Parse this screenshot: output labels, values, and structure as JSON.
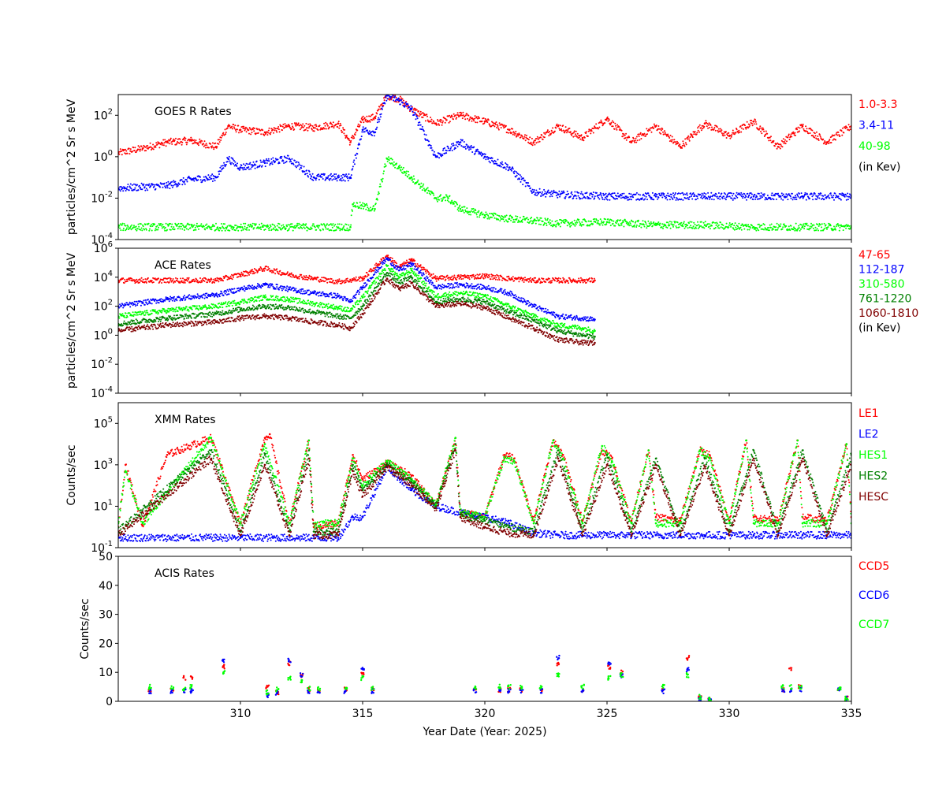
{
  "chart_data": [
    {
      "type": "scatter",
      "title": "GOES R Rates",
      "ylabel": "particles/cm^2 Sr s MeV",
      "yscale": "log",
      "ylim": [
        0.0001,
        1000
      ],
      "yticks": [
        "10^-4",
        "10^-2",
        "10^0",
        "10^2"
      ],
      "legend_note": "(in Kev)",
      "series": [
        {
          "name": "1.0-3.3",
          "color": "#ff0000",
          "x": [
            305,
            306,
            307,
            308,
            309,
            309.5,
            310,
            311,
            312,
            313,
            314,
            314.5,
            315,
            315.5,
            316,
            316.5,
            317,
            318,
            319,
            320,
            321,
            322,
            323,
            324,
            325,
            326,
            327,
            328,
            329,
            330,
            331,
            332,
            333,
            334,
            335
          ],
          "y": [
            1.5,
            2.5,
            5,
            6,
            3,
            30,
            20,
            15,
            30,
            25,
            40,
            5,
            60,
            80,
            900,
            600,
            200,
            40,
            100,
            50,
            20,
            5,
            30,
            8,
            70,
            5,
            30,
            3,
            40,
            10,
            50,
            3,
            30,
            5,
            30
          ]
        },
        {
          "name": "3.4-11",
          "color": "#0000ff",
          "x": [
            305,
            307,
            308,
            309,
            309.5,
            310,
            311,
            312,
            313,
            314,
            314.5,
            315,
            315.5,
            316,
            316.5,
            317,
            318,
            319,
            320,
            321,
            322,
            323,
            325,
            327,
            329,
            331,
            333,
            335
          ],
          "y": [
            0.03,
            0.04,
            0.08,
            0.1,
            0.8,
            0.3,
            0.5,
            0.8,
            0.1,
            0.1,
            0.1,
            20,
            15,
            900,
            500,
            200,
            1,
            5,
            1,
            0.3,
            0.02,
            0.015,
            0.012,
            0.012,
            0.012,
            0.012,
            0.012,
            0.012
          ]
        },
        {
          "name": "40-98",
          "color": "#00ff00",
          "x": [
            305,
            310,
            314.5,
            314.6,
            315.5,
            316,
            316.5,
            317,
            318,
            318.5,
            319,
            320,
            321,
            322,
            323,
            325,
            327,
            329,
            331,
            333,
            335
          ],
          "y": [
            0.0004,
            0.0004,
            0.0004,
            0.005,
            0.003,
            0.8,
            0.3,
            0.1,
            0.01,
            0.01,
            0.003,
            0.0015,
            0.001,
            0.0008,
            0.0006,
            0.0007,
            0.0005,
            0.0005,
            0.0004,
            0.0004,
            0.0004
          ]
        }
      ]
    },
    {
      "type": "scatter",
      "title": "ACE Rates",
      "ylabel": "particles/cm^2 Sr s MeV",
      "yscale": "log",
      "ylim": [
        0.0001,
        1000000
      ],
      "yticks": [
        "10^-4",
        "10^-2",
        "10^0",
        "10^2",
        "10^4",
        "10^6"
      ],
      "legend_note": "(in Kev)",
      "series": [
        {
          "name": "47-65",
          "color": "#ff0000",
          "x": [
            305,
            309,
            310,
            311,
            312,
            313,
            314,
            315,
            316,
            316.5,
            317,
            318,
            319,
            320,
            321,
            322,
            323,
            324,
            324.5
          ],
          "y": [
            6000,
            6000,
            15000,
            40000,
            15000,
            8000,
            5000,
            8000,
            300000,
            50000,
            150000,
            8000,
            10000,
            12000,
            8000,
            6000,
            6000,
            6000,
            6000
          ]
        },
        {
          "name": "112-187",
          "color": "#0000ff",
          "x": [
            305,
            307,
            309,
            310,
            311,
            312,
            313,
            314,
            314.5,
            315,
            316,
            316.5,
            317,
            318,
            319,
            320,
            321,
            322,
            323,
            324,
            324.5
          ],
          "y": [
            100,
            300,
            600,
            1500,
            3000,
            1500,
            800,
            500,
            200,
            2000,
            200000,
            30000,
            80000,
            2000,
            3000,
            2000,
            800,
            100,
            20,
            15,
            12
          ]
        },
        {
          "name": "310-580",
          "color": "#00ff00",
          "x": [
            305,
            307,
            309,
            310,
            311,
            312,
            313,
            314,
            314.5,
            315,
            316,
            316.5,
            317,
            318,
            319,
            320,
            321,
            322,
            323,
            324,
            324.5
          ],
          "y": [
            20,
            50,
            100,
            200,
            400,
            300,
            150,
            80,
            50,
            400,
            60000,
            10000,
            30000,
            500,
            800,
            500,
            100,
            20,
            5,
            3,
            2
          ]
        },
        {
          "name": "761-1220",
          "color": "#008000",
          "x": [
            305,
            307,
            309,
            310,
            311,
            312,
            313,
            314,
            314.5,
            315,
            316,
            316.5,
            317,
            318,
            319,
            320,
            321,
            322,
            323,
            324,
            324.5
          ],
          "y": [
            6,
            15,
            30,
            60,
            100,
            80,
            40,
            20,
            15,
            100,
            20000,
            4000,
            10000,
            200,
            300,
            200,
            40,
            10,
            2,
            1,
            0.8
          ]
        },
        {
          "name": "1060-1810",
          "color": "#800000",
          "x": [
            305,
            307,
            309,
            310,
            311,
            312,
            313,
            314,
            314.5,
            315,
            316,
            316.5,
            317,
            318,
            319,
            320,
            321,
            322,
            323,
            324,
            324.5
          ],
          "y": [
            2,
            5,
            8,
            15,
            20,
            15,
            8,
            5,
            3,
            30,
            8000,
            1500,
            4000,
            100,
            150,
            80,
            15,
            3,
            0.5,
            0.3,
            0.3
          ]
        }
      ]
    },
    {
      "type": "scatter",
      "title": "XMM Rates",
      "ylabel": "Counts/sec",
      "yscale": "log",
      "ylim": [
        0.1,
        1000000
      ],
      "yticks": [
        "10^-1",
        "10^1",
        "10^3",
        "10^5"
      ],
      "series": [
        {
          "name": "LE1",
          "color": "#ff0000",
          "x": [
            305,
            305.3,
            306,
            307,
            308.8,
            309.2,
            310,
            311,
            311.2,
            312,
            312.8,
            313,
            314,
            314.6,
            315,
            316,
            317,
            318,
            318.8,
            319,
            320,
            320.8,
            321.2,
            322,
            322.8,
            323.2,
            324,
            324.8,
            325.2,
            326,
            326.7,
            327,
            328,
            328.8,
            329.2,
            330,
            330.7,
            331,
            332,
            332.8,
            333,
            334,
            334.8,
            335
          ],
          "y": [
            1,
            1000,
            1.2,
            3000,
            20000,
            1000,
            1.5,
            20000,
            30000,
            1.5,
            15000,
            1,
            1.5,
            3000,
            200,
            1200,
            300,
            10,
            20000,
            5,
            3,
            3000,
            2000,
            2,
            15000,
            3000,
            2,
            5000,
            2000,
            2,
            5000,
            3,
            2,
            5000,
            3000,
            2,
            15000,
            3,
            2,
            15000,
            3,
            2,
            10000,
            3
          ]
        },
        {
          "name": "LE2",
          "color": "#0000ff",
          "x": [
            305,
            309,
            310,
            314,
            314.6,
            315,
            316,
            317,
            318,
            319,
            320,
            321,
            322,
            323,
            325,
            327,
            329,
            331,
            333,
            335
          ],
          "y": [
            0.3,
            0.3,
            0.3,
            0.3,
            3,
            3,
            800,
            60,
            10,
            5,
            3,
            1.5,
            0.5,
            0.4,
            0.4,
            0.4,
            0.4,
            0.4,
            0.4,
            0.4
          ]
        },
        {
          "name": "HES1",
          "color": "#00ff00",
          "x": [
            305,
            305.3,
            306,
            308.8,
            309.2,
            310,
            311,
            312,
            312.8,
            313,
            314,
            314.6,
            315,
            316,
            317,
            318,
            318.8,
            319,
            320,
            320.8,
            321.2,
            322,
            322.8,
            323.2,
            324,
            324.8,
            325.2,
            326,
            326.7,
            327,
            328,
            328.8,
            329.2,
            330,
            330.7,
            331,
            332,
            332.8,
            333,
            334,
            334.8,
            335
          ],
          "y": [
            1.5,
            500,
            1.5,
            20000,
            800,
            1.5,
            10000,
            1.5,
            15000,
            1.5,
            1.5,
            2000,
            100,
            1500,
            200,
            12,
            20000,
            5,
            3,
            2000,
            1500,
            1.5,
            15000,
            2000,
            1.5,
            8000,
            1500,
            1.5,
            5000,
            1.5,
            1.5,
            5000,
            2000,
            1.5,
            15000,
            1.5,
            1.5,
            15000,
            1.5,
            1.5,
            10000,
            1.5
          ]
        },
        {
          "name": "HES2",
          "color": "#008000",
          "x": [
            305,
            308.8,
            310,
            311,
            312,
            312.8,
            313,
            314,
            314.6,
            315,
            316,
            317,
            318,
            318.8,
            319,
            320,
            321,
            322,
            323,
            324,
            325,
            326,
            327,
            328,
            329,
            330,
            331,
            332,
            333,
            334,
            335
          ],
          "y": [
            0.6,
            5000,
            0.6,
            3000,
            0.6,
            5000,
            0.6,
            0.6,
            1000,
            60,
            1000,
            150,
            10,
            10000,
            4,
            2,
            1,
            0.6,
            5000,
            0.6,
            3000,
            0.6,
            2000,
            0.6,
            2000,
            0.6,
            5000,
            0.6,
            5000,
            0.6,
            3000
          ]
        },
        {
          "name": "HESC",
          "color": "#800000",
          "x": [
            305,
            308.8,
            310,
            311,
            312,
            312.8,
            313,
            314,
            314.6,
            315,
            316,
            317,
            318,
            318.8,
            319,
            320,
            321,
            322,
            323,
            324,
            325,
            326,
            327,
            328,
            329,
            330,
            331,
            332,
            333,
            334,
            335
          ],
          "y": [
            0.4,
            2000,
            0.4,
            1000,
            0.4,
            2000,
            0.4,
            0.4,
            500,
            30,
            800,
            100,
            8,
            5000,
            3,
            1,
            0.5,
            0.4,
            2000,
            0.4,
            1000,
            0.4,
            1000,
            0.4,
            800,
            0.4,
            2000,
            0.4,
            2000,
            0.4,
            1000
          ]
        }
      ]
    },
    {
      "type": "scatter",
      "title": "ACIS Rates",
      "ylabel": "Counts/sec",
      "yscale": "linear",
      "ylim": [
        0,
        50
      ],
      "yticks": [
        "0",
        "10",
        "20",
        "30",
        "40",
        "50"
      ],
      "xlabel": "Year Date (Year: 2025)",
      "xlim": [
        305,
        335
      ],
      "xticks": [
        "310",
        "315",
        "320",
        "325",
        "330",
        "335"
      ],
      "series": [
        {
          "name": "CCD5",
          "color": "#ff0000",
          "x": [
            306.3,
            307.2,
            307.7,
            308,
            309.3,
            311.1,
            311.5,
            312,
            312.5,
            312.8,
            313.2,
            314.3,
            315,
            315.4,
            319.6,
            320.6,
            321,
            321.5,
            322.3,
            323,
            324,
            325.1,
            325.6,
            327.3,
            328.3,
            328.8,
            329.2,
            332.2,
            332.5,
            332.9,
            334.5,
            334.8
          ],
          "y": [
            4,
            4,
            8,
            8,
            12,
            5,
            3,
            13,
            9,
            4,
            4,
            4,
            10,
            4,
            4,
            4,
            4,
            4,
            4,
            13,
            4,
            12,
            10,
            4,
            15,
            1,
            1,
            4,
            11,
            5,
            4,
            1
          ]
        },
        {
          "name": "CCD6",
          "color": "#0000ff",
          "x": [
            306.3,
            307.2,
            307.7,
            308,
            309.3,
            311.1,
            311.5,
            312,
            312.5,
            312.8,
            313.2,
            314.3,
            315,
            315.4,
            319.6,
            320.6,
            321,
            321.5,
            322.3,
            323,
            324,
            325.1,
            325.6,
            327.3,
            328.3,
            328.8,
            329.2,
            332.2,
            332.5,
            332.9,
            334.5,
            334.8
          ],
          "y": [
            3.5,
            3.5,
            3.5,
            3.5,
            14,
            2,
            3,
            14,
            9,
            3.5,
            3.5,
            3.5,
            11,
            3.5,
            3.5,
            3.5,
            3.5,
            3.5,
            3.5,
            15,
            3.5,
            13,
            9,
            3.5,
            11,
            1,
            1,
            3.5,
            4,
            4,
            4,
            1
          ]
        },
        {
          "name": "CCD7",
          "color": "#00ff00",
          "x": [
            306.3,
            307.2,
            307.7,
            308,
            309.3,
            311.1,
            311.5,
            312,
            312.5,
            312.8,
            313.2,
            314.3,
            315,
            315.4,
            319.6,
            320.6,
            321,
            321.5,
            322.3,
            323,
            324,
            325.1,
            325.6,
            327.3,
            328.3,
            328.8,
            329.2,
            332.2,
            332.5,
            332.9,
            334.5,
            334.8
          ],
          "y": [
            5,
            5,
            4.5,
            5,
            10,
            3,
            4,
            8,
            7,
            4.5,
            4.5,
            5,
            8,
            4.5,
            5,
            5,
            5,
            5,
            5,
            9,
            5,
            8,
            9,
            5,
            9,
            1.5,
            1,
            5,
            5,
            5,
            4.5,
            1
          ]
        }
      ]
    }
  ]
}
